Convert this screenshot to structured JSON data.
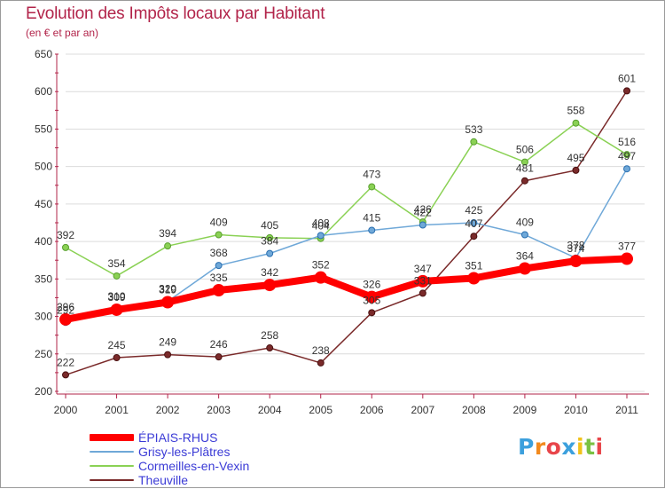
{
  "header": {
    "title": "Evolution des Impôts locaux par Habitant",
    "subtitle": "(en € et par an)"
  },
  "colors": {
    "title": "#b2244a",
    "axis": "#b2244a",
    "grid": "#dcdcdc",
    "tick_label": "#333333",
    "value_label": "#333333",
    "legend_text": "#3b3bd6"
  },
  "chart_data": {
    "type": "line",
    "title": "Evolution des Impôts locaux par Habitant",
    "subtitle": "(en € et par an)",
    "xlabel": "",
    "ylabel": "",
    "x": [
      "2000",
      "2001",
      "2002",
      "2003",
      "2004",
      "2005",
      "2006",
      "2007",
      "2008",
      "2009",
      "2010",
      "2011"
    ],
    "ylim": [
      200,
      650
    ],
    "yticks": [
      200,
      250,
      300,
      350,
      400,
      450,
      500,
      550,
      600,
      650
    ],
    "grid": "horizontal",
    "legend_position": "bottom-left",
    "series": [
      {
        "name": "ÉPIAIS-RHUS",
        "color": "#ff0000",
        "width": 8,
        "values": [
          296,
          309,
          319,
          335,
          342,
          352,
          326,
          347,
          351,
          364,
          374,
          377
        ]
      },
      {
        "name": "Grisy-les-Plâtres",
        "color": "#6fa8d8",
        "width": 1.5,
        "values": [
          292,
          310,
          320,
          368,
          384,
          408,
          415,
          422,
          425,
          409,
          378,
          497
        ]
      },
      {
        "name": "Cormeilles-en-Vexin",
        "color": "#8ad154",
        "width": 1.5,
        "values": [
          392,
          354,
          394,
          409,
          405,
          404,
          473,
          426,
          533,
          506,
          558,
          516
        ]
      },
      {
        "name": "Theuville",
        "color": "#7a2a2a",
        "width": 1.5,
        "values": [
          222,
          245,
          249,
          246,
          258,
          238,
          305,
          331,
          407,
          481,
          495,
          601
        ]
      }
    ]
  },
  "logo": {
    "letters": [
      {
        "ch": "P",
        "color": "#3ca0dd"
      },
      {
        "ch": "r",
        "color": "#f28a1e"
      },
      {
        "ch": "o",
        "color": "#e8454a"
      },
      {
        "ch": "x",
        "color": "#3ca0dd"
      },
      {
        "ch": "i",
        "color": "#f2c21a"
      },
      {
        "ch": "t",
        "color": "#7ac143"
      },
      {
        "ch": "i",
        "color": "#e8454a"
      }
    ]
  }
}
